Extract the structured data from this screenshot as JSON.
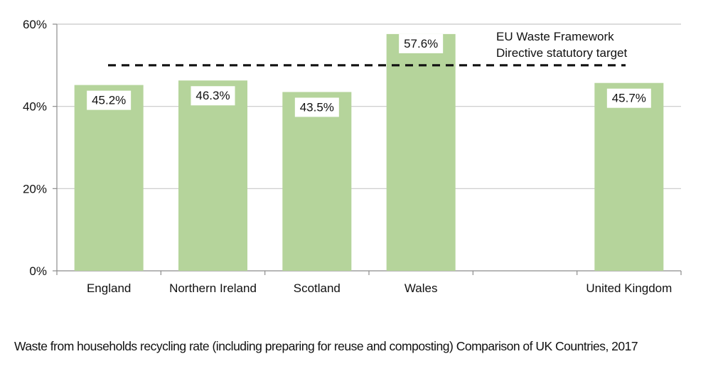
{
  "chart_data": {
    "type": "bar",
    "title": "Waste from households recycling rate (including preparing for reuse and composting) Comparison of UK Countries, 2017",
    "xlabel": "",
    "ylabel": "",
    "ylim": [
      0,
      60
    ],
    "yticks": [
      0,
      20,
      40,
      60
    ],
    "ytick_labels": [
      "0%",
      "20%",
      "40%",
      "60%"
    ],
    "grid": true,
    "categories": [
      "England",
      "Northern Ireland",
      "Scotland",
      "Wales",
      "",
      "United Kingdom"
    ],
    "values": [
      45.2,
      46.3,
      43.5,
      57.6,
      null,
      45.7
    ],
    "data_labels": [
      "45.2%",
      "46.3%",
      "43.5%",
      "57.6%",
      "",
      "45.7%"
    ],
    "bar_color": "#b5d49b",
    "target_line": {
      "value": 50,
      "label_lines": [
        "EU Waste Framework",
        "Directive statutory target"
      ],
      "style": "dashed",
      "color": "#111111"
    }
  },
  "caption": "Waste from households recycling rate (including preparing for reuse and composting) Comparison of UK Countries, 2017"
}
